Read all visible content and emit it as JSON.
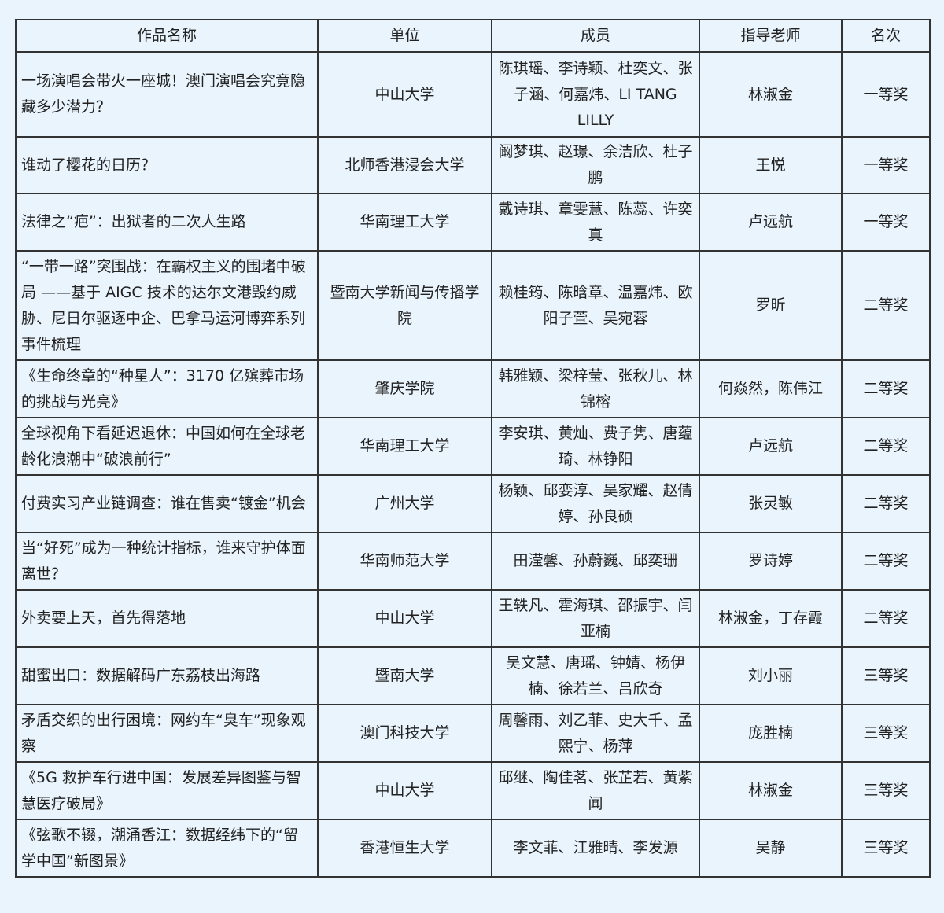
{
  "table": {
    "headers": [
      "作品名称",
      "单位",
      "成员",
      "指导老师",
      "名次"
    ],
    "rows": [
      [
        "一场演唱会带火一座城！澳门演唱会究竟隐藏多少潜力？",
        "中山大学",
        "陈琪瑶、李诗颖、杜奕文、张子涵、何嘉炜、LI TANG LILLY",
        "林淑金",
        "一等奖"
      ],
      [
        "谁动了樱花的日历？",
        "北师香港浸会大学",
        "阚梦琪、赵璟、余洁欣、杜子鹏",
        "王悦",
        "一等奖"
      ],
      [
        "法律之“疤”：出狱者的二次人生路",
        "华南理工大学",
        "戴诗琪、章雯慧、陈蕊、许奕真",
        "卢远航",
        "一等奖"
      ],
      [
        "“一带一路”突围战：在霸权主义的围堵中破局 ——基于 AIGC 技术的达尔文港毁约威胁、尼日尔驱逐中企、巴拿马运河博弈系列事件梳理",
        "暨南大学新闻与传播学院",
        "赖桂筠、陈晗章、温嘉炜、欧阳子萱、吴宛蓉",
        "罗昕",
        "二等奖"
      ],
      [
        "《生命终章的“种星人”：3170 亿殡葬市场的挑战与光亮》",
        "肇庆学院",
        "韩雅颖、梁梓莹、张秋儿、林锦榕",
        "何焱然，陈伟江",
        "二等奖"
      ],
      [
        "全球视角下看延迟退休：中国如何在全球老龄化浪潮中“破浪前行”",
        "华南理工大学",
        "李安琪、黄灿、费子隽、唐蕴琦、林铮阳",
        "卢远航",
        "二等奖"
      ],
      [
        "付费实习产业链调查：谁在售卖“镀金”机会",
        "广州大学",
        "杨颖、邱娈淳、吴家耀、赵倩婷、孙良硕",
        "张灵敏",
        "二等奖"
      ],
      [
        "当“好死”成为一种统计指标，谁来守护体面离世？",
        "华南师范大学",
        "田滢馨、孙蔚巍、邱奕珊",
        "罗诗婷",
        "二等奖"
      ],
      [
        "外卖要上天，首先得落地",
        "中山大学",
        "王轶凡、霍海琪、邵振宇、闫亚楠",
        "林淑金，丁存霞",
        "二等奖"
      ],
      [
        "甜蜜出口：数据解码广东荔枝出海路",
        "暨南大学",
        "吴文慧、唐瑶、钟婧、杨伊楠、徐若兰、吕欣奇",
        "刘小丽",
        "三等奖"
      ],
      [
        "矛盾交织的出行困境：网约车“臭车”现象观察",
        "澳门科技大学",
        "周馨雨、刘乙菲、史大千、孟熙宁、杨萍",
        "庞胜楠",
        "三等奖"
      ],
      [
        "《5G 救护车行进中国：发展差异图鉴与智慧医疗破局》",
        "中山大学",
        "邱继、陶佳茗、张芷若、黄紫闻",
        "林淑金",
        "三等奖"
      ],
      [
        "《弦歌不辍，潮涌香江：数据经纬下的“留学中国”新图景》",
        "香港恒生大学",
        "李文菲、江雅晴、李发源",
        "吴静",
        "三等奖"
      ]
    ]
  }
}
